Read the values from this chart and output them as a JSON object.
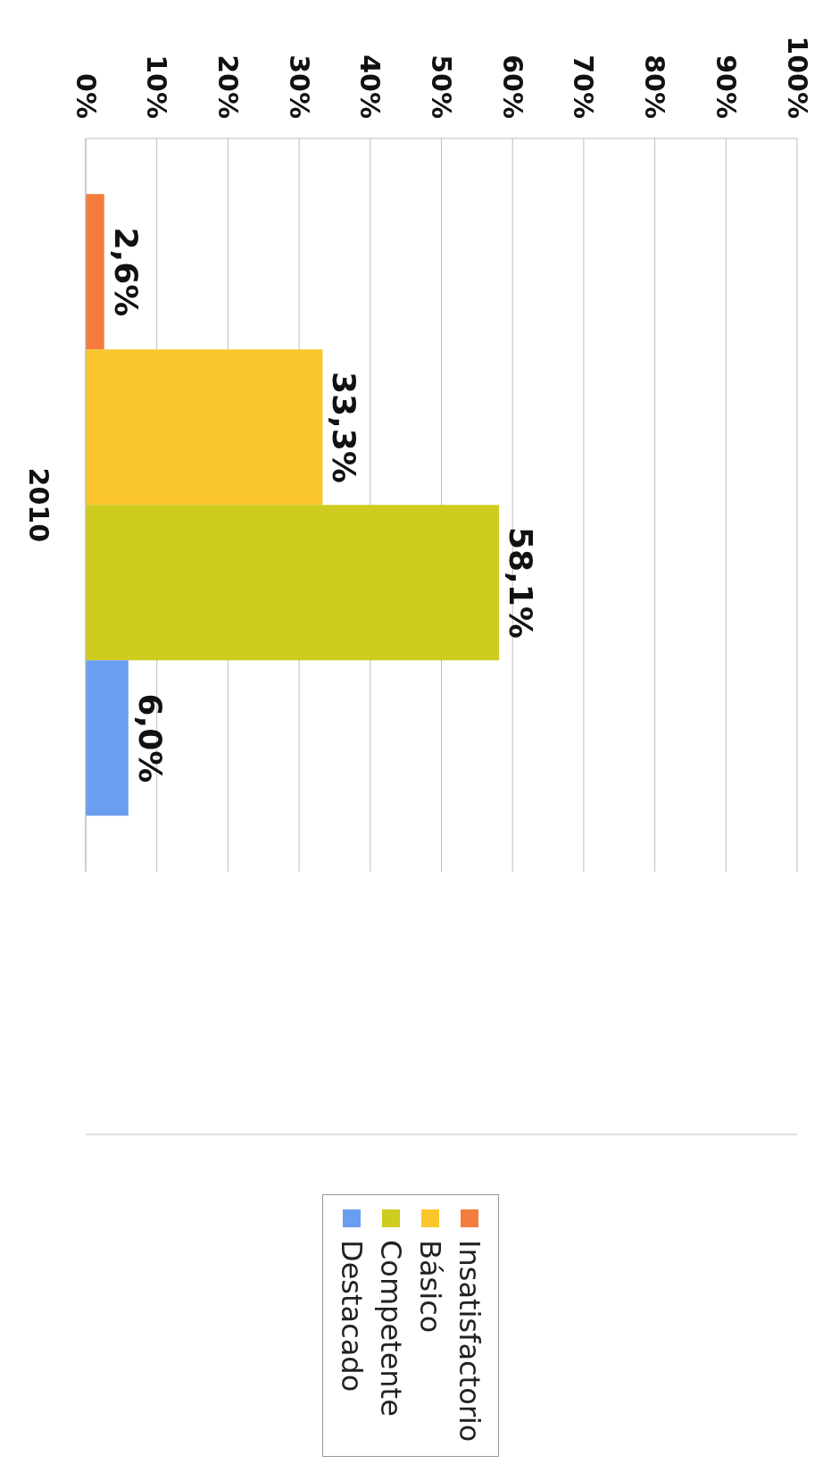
{
  "chart_data": {
    "type": "bar",
    "orientation": "horizontal",
    "categories": [
      "2010"
    ],
    "series": [
      {
        "name": "Insatisfactorio",
        "color": "#f47c3c",
        "values": [
          2.6
        ],
        "value_labels": [
          "2,6%"
        ]
      },
      {
        "name": "Básico",
        "color": "#fbc52c",
        "values": [
          33.3
        ],
        "value_labels": [
          "33,3%"
        ]
      },
      {
        "name": "Competente",
        "color": "#cdcc1f",
        "values": [
          58.1
        ],
        "value_labels": [
          "58,1%"
        ]
      },
      {
        "name": "Destacado",
        "color": "#6a9ef0",
        "values": [
          6.0
        ],
        "value_labels": [
          "6,0%"
        ]
      }
    ],
    "xlim": [
      0,
      100
    ],
    "xticks": [
      {
        "value": 0,
        "label": "0%"
      },
      {
        "value": 10,
        "label": "10%"
      },
      {
        "value": 20,
        "label": "20%"
      },
      {
        "value": 30,
        "label": "30%"
      },
      {
        "value": 40,
        "label": "40%"
      },
      {
        "value": 50,
        "label": "50%"
      },
      {
        "value": 60,
        "label": "60%"
      },
      {
        "value": 70,
        "label": "70%"
      },
      {
        "value": 80,
        "label": "80%"
      },
      {
        "value": 90,
        "label": "90%"
      },
      {
        "value": 100,
        "label": "100%"
      }
    ],
    "grid": "x",
    "legend": "bottom"
  }
}
